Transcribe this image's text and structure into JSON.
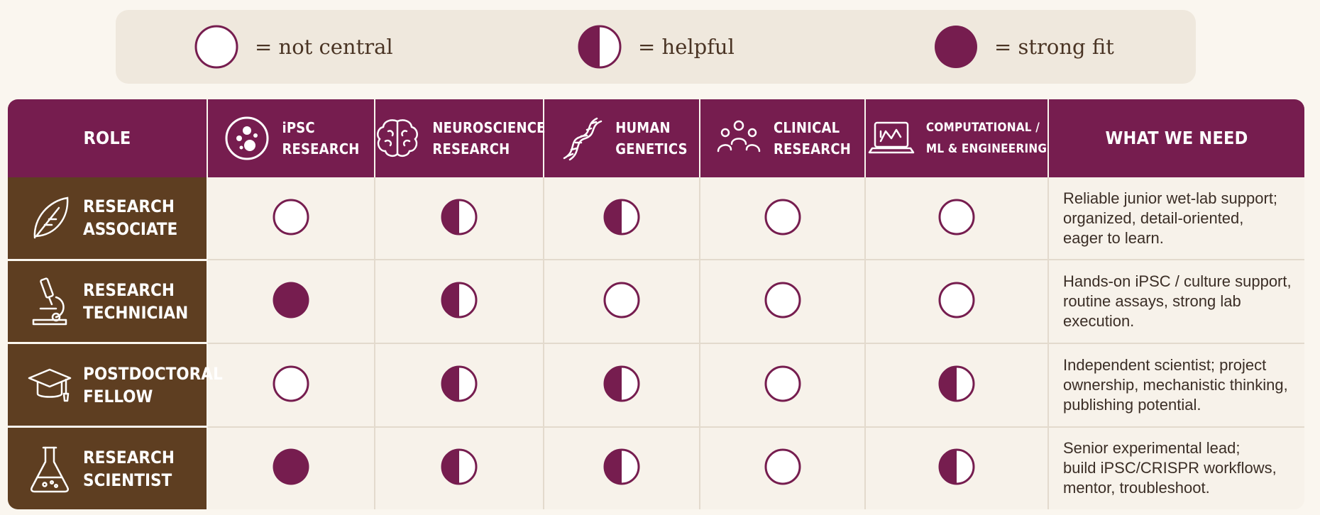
{
  "colors": {
    "accent": "#761d4f",
    "role_bg": "#5e3e21",
    "legend_bg": "#efe8dd",
    "page_bg": "#faf6ef"
  },
  "legend": [
    {
      "symbol": "empty-circle",
      "label": "= not central"
    },
    {
      "symbol": "half-circle",
      "label": "= helpful"
    },
    {
      "symbol": "full-circle",
      "label": "= strong fit"
    }
  ],
  "header": {
    "role": "ROLE",
    "what_we_need": "WHAT WE NEED",
    "columns": [
      {
        "icon": "petri-dish-icon",
        "line1": "iPSC",
        "line2": "RESEARCH"
      },
      {
        "icon": "brain-icon",
        "line1": "NEUROSCIENCE",
        "line2": "RESEARCH"
      },
      {
        "icon": "dna-icon",
        "line1": "HUMAN",
        "line2": "GENETICS"
      },
      {
        "icon": "people-group-icon",
        "line1": "CLINICAL",
        "line2": "RESEARCH"
      },
      {
        "icon": "laptop-chart-icon",
        "line1": "COMPUTATIONAL /",
        "line2": "ML & ENGINEERING"
      }
    ]
  },
  "rows": [
    {
      "icon": "leaf-icon",
      "line1": "RESEARCH",
      "line2": "ASSOCIATE",
      "ratings": [
        "not central",
        "helpful",
        "helpful",
        "not central",
        "not central"
      ],
      "need": [
        "Reliable junior wet-lab support;",
        "organized, detail-oriented,",
        "eager to learn."
      ]
    },
    {
      "icon": "microscope-icon",
      "line1": "RESEARCH",
      "line2": "TECHNICIAN",
      "ratings": [
        "strong fit",
        "helpful",
        "not central",
        "not central",
        "not central"
      ],
      "need": [
        "Hands-on iPSC / culture support,",
        "routine assays, strong lab",
        "execution."
      ]
    },
    {
      "icon": "graduation-cap-icon",
      "line1": "POSTDOCTORAL",
      "line2": "FELLOW",
      "ratings": [
        "not central",
        "helpful",
        "helpful",
        "not central",
        "helpful"
      ],
      "need": [
        "Independent scientist; project",
        "ownership, mechanistic thinking,",
        "publishing potential."
      ]
    },
    {
      "icon": "flask-icon",
      "line1": "RESEARCH",
      "line2": "SCIENTIST",
      "ratings": [
        "strong fit",
        "helpful",
        "helpful",
        "not central",
        "helpful"
      ],
      "need": [
        "Senior experimental lead;",
        "build iPSC/CRISPR workflows,",
        "mentor, troubleshoot."
      ]
    }
  ]
}
